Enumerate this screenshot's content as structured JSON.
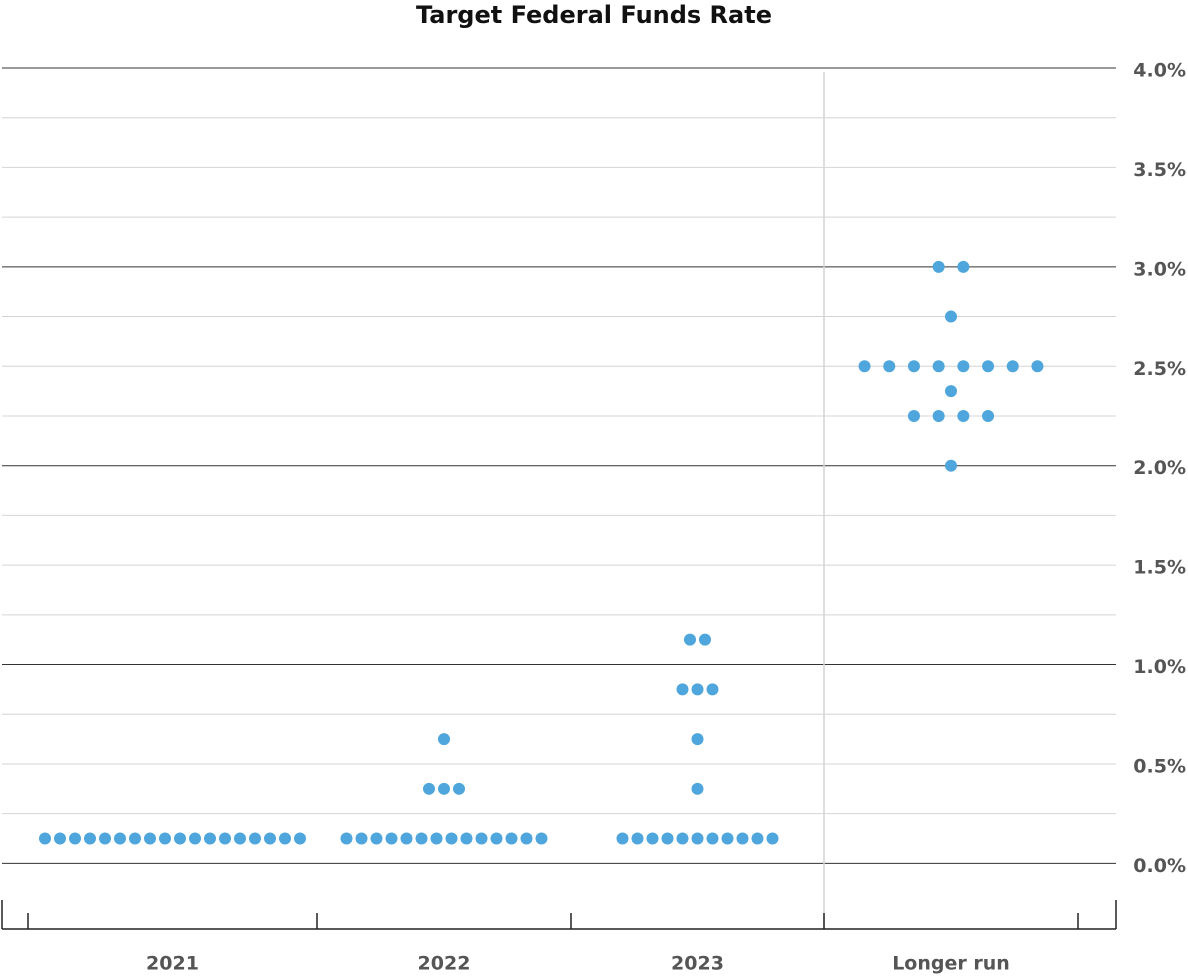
{
  "chart_data": {
    "type": "dot",
    "title": "Target Federal Funds Rate",
    "categories": [
      "2021",
      "2022",
      "2023",
      "Longer run"
    ],
    "values": [
      [
        0.125,
        0.125,
        0.125,
        0.125,
        0.125,
        0.125,
        0.125,
        0.125,
        0.125,
        0.125,
        0.125,
        0.125,
        0.125,
        0.125,
        0.125,
        0.125,
        0.125,
        0.125
      ],
      [
        0.125,
        0.125,
        0.125,
        0.125,
        0.125,
        0.125,
        0.125,
        0.125,
        0.125,
        0.125,
        0.125,
        0.125,
        0.125,
        0.125,
        0.375,
        0.375,
        0.375,
        0.625
      ],
      [
        0.125,
        0.125,
        0.125,
        0.125,
        0.125,
        0.125,
        0.125,
        0.125,
        0.125,
        0.125,
        0.125,
        0.375,
        0.625,
        0.875,
        0.875,
        0.875,
        1.125,
        1.125
      ],
      [
        2.0,
        2.25,
        2.25,
        2.25,
        2.25,
        2.375,
        2.5,
        2.5,
        2.5,
        2.5,
        2.5,
        2.5,
        2.5,
        2.5,
        2.75,
        3.0,
        3.0
      ]
    ],
    "color": "#4ea6dc",
    "ylim": [
      -0.33,
      4.0
    ],
    "yticks": [
      {
        "value": 0,
        "label": "0.0%"
      },
      {
        "value": 0.5,
        "label": "0.5%"
      },
      {
        "value": 1,
        "label": "1.0%"
      },
      {
        "value": 1.5,
        "label": "1.5%"
      },
      {
        "value": 2,
        "label": "2.0%"
      },
      {
        "value": 2.5,
        "label": "2.5%"
      },
      {
        "value": 3,
        "label": "3.0%"
      },
      {
        "value": 3.5,
        "label": "3.5%"
      },
      {
        "value": 4,
        "label": "4.0%"
      }
    ],
    "minor_yticks": [
      0.25,
      0.75,
      1.25,
      1.75,
      2.25,
      2.75,
      3.25,
      3.75
    ],
    "grid": true
  }
}
